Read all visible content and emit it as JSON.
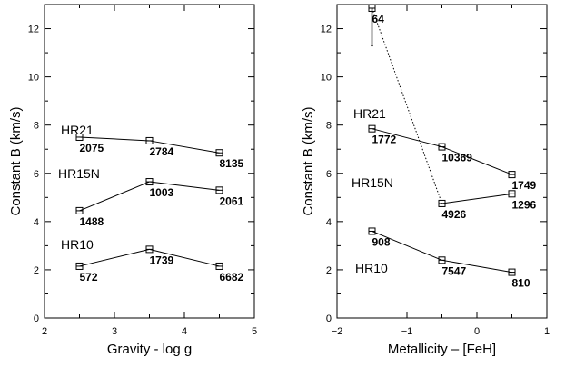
{
  "chart_data": [
    {
      "type": "line",
      "xlabel": "Gravity - log g",
      "ylabel": "Constant B (km/s)",
      "xlim": [
        2,
        5
      ],
      "ylim": [
        0,
        13
      ],
      "xticks": [
        "2",
        "3",
        "4",
        "5"
      ],
      "yticks": [
        "0",
        "2",
        "4",
        "6",
        "8",
        "10",
        "12"
      ],
      "series": [
        {
          "name": "HR21",
          "x": [
            2.5,
            3.5,
            4.5
          ],
          "y": [
            7.5,
            7.35,
            6.85
          ],
          "labels": [
            "2075",
            "2784",
            "8135"
          ]
        },
        {
          "name": "HR15N",
          "x": [
            2.5,
            3.5,
            4.5
          ],
          "y": [
            4.45,
            5.65,
            5.3
          ],
          "labels": [
            "1488",
            "1003",
            "2061"
          ]
        },
        {
          "name": "HR10",
          "x": [
            2.5,
            3.5,
            4.5
          ],
          "y": [
            2.15,
            2.85,
            2.15
          ],
          "labels": [
            "572",
            "1739",
            "6682"
          ]
        }
      ]
    },
    {
      "type": "line",
      "xlabel": "Metallicity – [FeH]",
      "ylabel": "Constant B (km/s)",
      "xlim": [
        -2,
        1
      ],
      "ylim": [
        0,
        13
      ],
      "xticks": [
        "−2",
        "−1",
        "0",
        "1"
      ],
      "yticks": [
        "0",
        "2",
        "4",
        "6",
        "8",
        "10",
        "12"
      ],
      "series": [
        {
          "name": "HR21",
          "x": [
            -1.5,
            -0.5,
            0.5
          ],
          "y": [
            7.85,
            7.1,
            5.95
          ],
          "labels": [
            "1772",
            "10369",
            "1749"
          ]
        },
        {
          "name": "HR15N",
          "x": [
            -1.5,
            -0.5,
            0.5
          ],
          "y": [
            12.85,
            4.75,
            5.15
          ],
          "labels": [
            "64",
            "4926",
            "1296"
          ],
          "dotted_segments": [
            0
          ],
          "error_bar": {
            "x": -1.5,
            "y_low": 11.3,
            "y_high": 12.85
          }
        },
        {
          "name": "HR10",
          "x": [
            -1.5,
            -0.5,
            0.5
          ],
          "y": [
            3.6,
            2.4,
            1.9
          ],
          "labels": [
            "908",
            "7547",
            "810"
          ]
        }
      ]
    }
  ]
}
